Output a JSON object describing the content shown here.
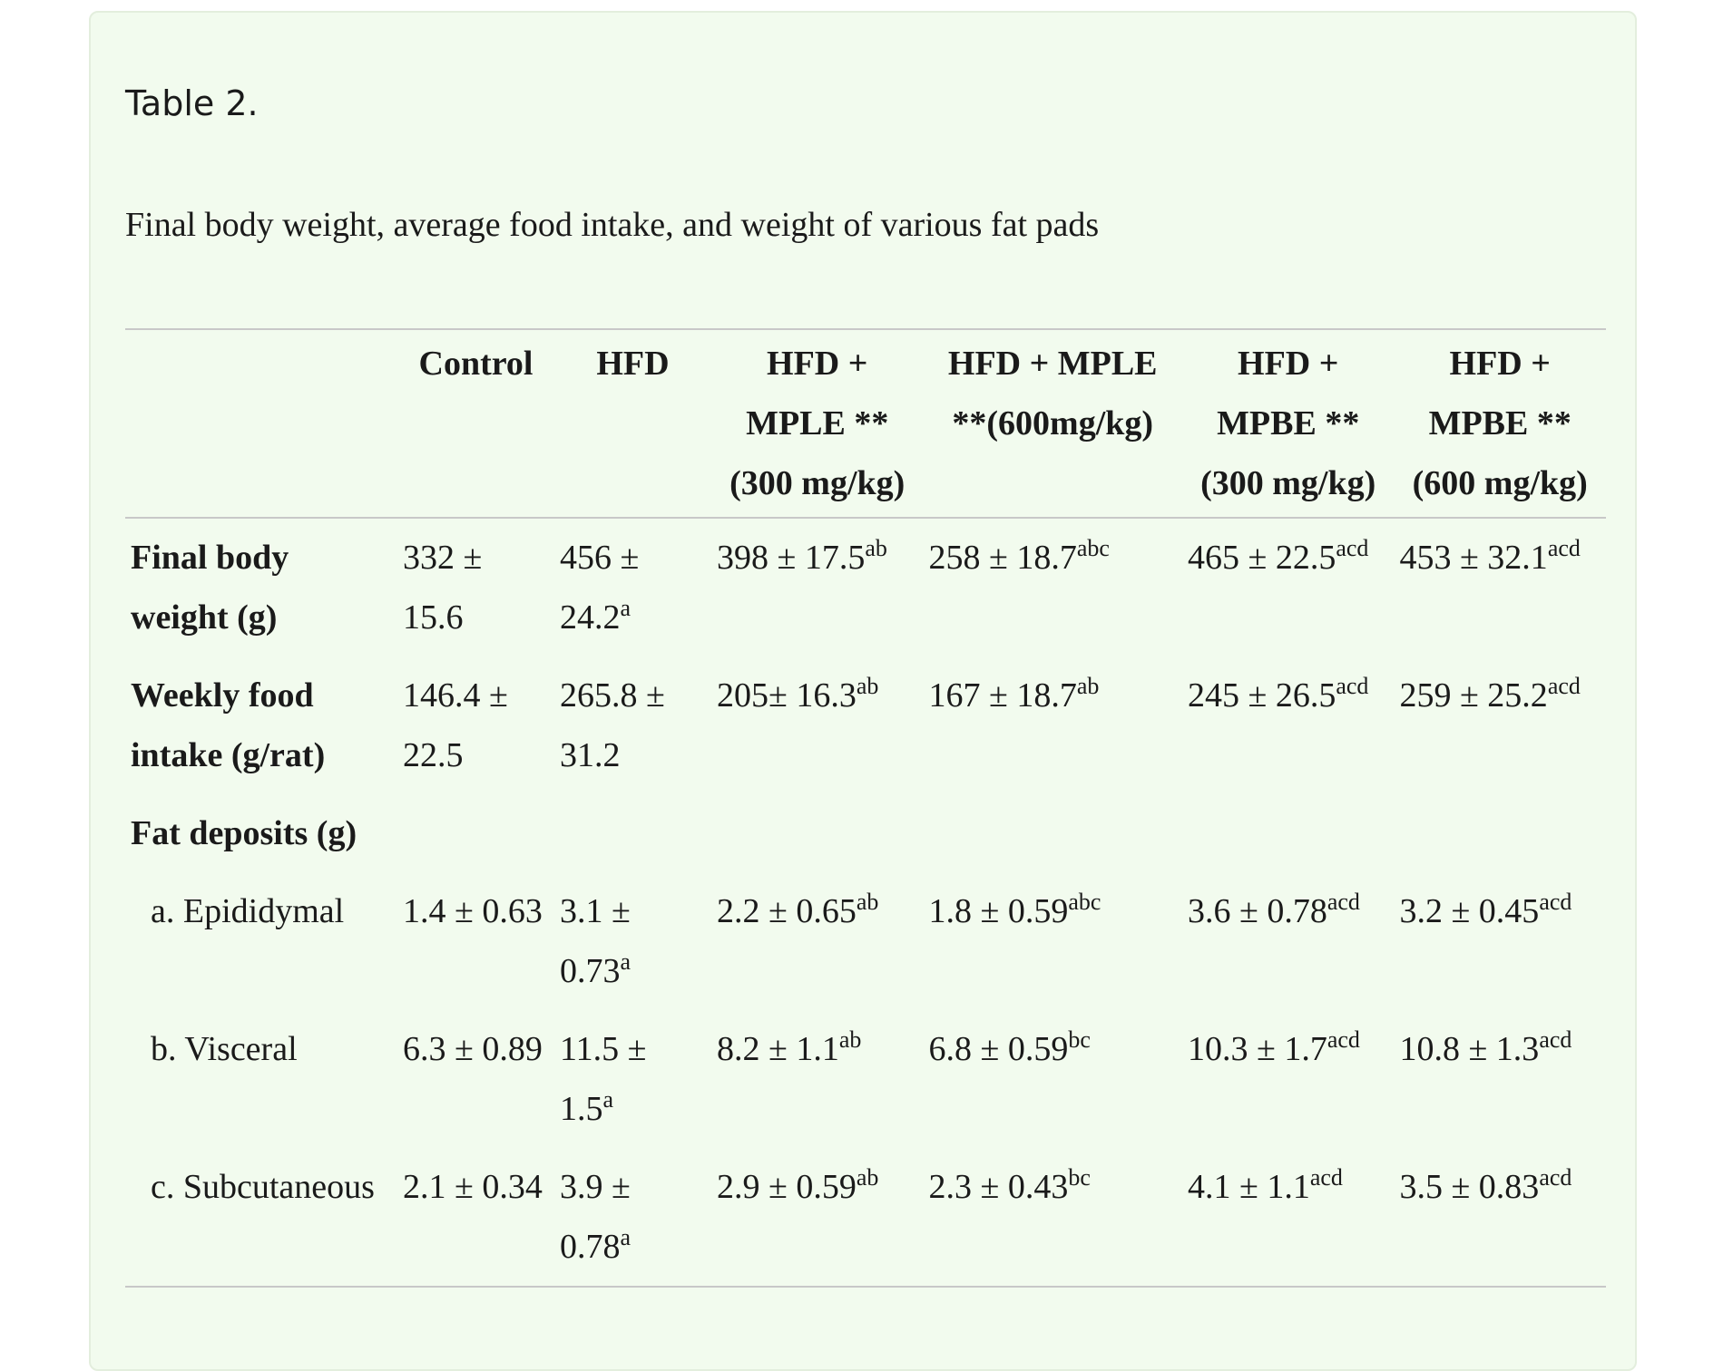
{
  "table_label": "Table 2.",
  "caption": "Final body weight, average food intake, and weight of various fat pads",
  "columns": [
    "",
    "Control",
    "HFD",
    "HFD + MPLE ** (300 mg/kg)",
    "HFD + MPLE **(600mg/kg)",
    "HFD + MPBE ** (300 mg/kg)",
    "HFD + MPBE ** (600 mg/kg)"
  ],
  "rows": [
    {
      "label": "Final body weight (g)",
      "cells": [
        {
          "value": "332 ± 15.6",
          "sup": ""
        },
        {
          "value": "456 ± 24.2",
          "sup": "a"
        },
        {
          "value": "398 ± 17.5",
          "sup": "ab"
        },
        {
          "value": "258 ± 18.7",
          "sup": "abc"
        },
        {
          "value": "465 ± 22.5",
          "sup": "acd"
        },
        {
          "value": "453 ± 32.1",
          "sup": "acd"
        }
      ]
    },
    {
      "label": "Weekly food intake (g/rat)",
      "cells": [
        {
          "value": "146.4 ± 22.5",
          "sup": ""
        },
        {
          "value": "265.8 ± 31.2",
          "sup": ""
        },
        {
          "value": "205± 16.3",
          "sup": "ab"
        },
        {
          "value": "167 ± 18.7",
          "sup": "ab"
        },
        {
          "value": "245 ± 26.5",
          "sup": "acd"
        },
        {
          "value": "259 ± 25.2",
          "sup": "acd"
        }
      ]
    },
    {
      "label": "Fat deposits (g)",
      "cells": []
    },
    {
      "label": "a. Epididymal",
      "cells": [
        {
          "value": "1.4 ± 0.63",
          "sup": ""
        },
        {
          "value": "3.1 ± 0.73",
          "sup": "a"
        },
        {
          "value": "2.2 ± 0.65",
          "sup": "ab"
        },
        {
          "value": "1.8 ± 0.59",
          "sup": "abc"
        },
        {
          "value": "3.6 ± 0.78",
          "sup": "acd"
        },
        {
          "value": "3.2 ± 0.45",
          "sup": "acd"
        }
      ]
    },
    {
      "label": "b. Visceral",
      "cells": [
        {
          "value": "6.3 ± 0.89",
          "sup": ""
        },
        {
          "value": "11.5 ± 1.5",
          "sup": "a"
        },
        {
          "value": "8.2 ± 1.1",
          "sup": "ab"
        },
        {
          "value": "6.8 ± 0.59",
          "sup": "bc"
        },
        {
          "value": "10.3 ± 1.7",
          "sup": "acd"
        },
        {
          "value": "10.8 ± 1.3",
          "sup": "acd"
        }
      ]
    },
    {
      "label": "c. Subcutaneous",
      "cells": [
        {
          "value": "2.1 ± 0.34",
          "sup": ""
        },
        {
          "value": "3.9 ± 0.78",
          "sup": "a"
        },
        {
          "value": "2.9 ± 0.59",
          "sup": "ab"
        },
        {
          "value": "2.3 ± 0.43",
          "sup": "bc"
        },
        {
          "value": "4.1 ± 1.1",
          "sup": "acd"
        },
        {
          "value": "3.5 ± 0.83",
          "sup": "acd"
        }
      ]
    }
  ]
}
